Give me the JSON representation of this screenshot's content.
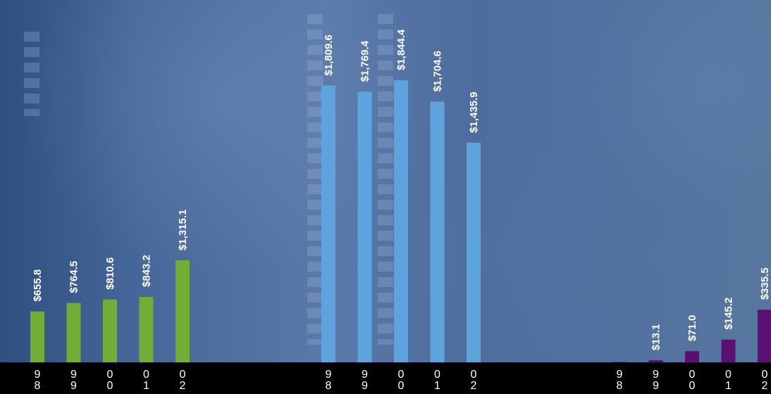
{
  "chart_data": [
    {
      "type": "bar",
      "categories": [
        "98",
        "99",
        "00",
        "01",
        "02"
      ],
      "values": [
        655.8,
        764.5,
        810.6,
        843.2,
        1315.1
      ],
      "data_labels": [
        "$655.8",
        "$764.5",
        "$810.6",
        "$843.2",
        "$1,315.1"
      ],
      "color": "#73ad36"
    },
    {
      "type": "bar",
      "categories": [
        "98",
        "99",
        "00",
        "01",
        "02"
      ],
      "values": [
        1809.6,
        1769.4,
        1844.4,
        1704.6,
        1435.9
      ],
      "data_labels": [
        "$1,809.6",
        "$1,769.4",
        "$1,844.4",
        "$1,704.6",
        "$1,435.9"
      ],
      "color": "#5fa3dd"
    },
    {
      "type": "bar",
      "categories": [
        "98",
        "99",
        "00",
        "01",
        "02"
      ],
      "values": [
        2.6,
        13.1,
        71.0,
        145.2,
        335.5
      ],
      "data_labels": [
        "",
        "$13.1",
        "$71.0",
        "$145.2",
        "$335.5"
      ],
      "color": "#5c0f72"
    }
  ]
}
